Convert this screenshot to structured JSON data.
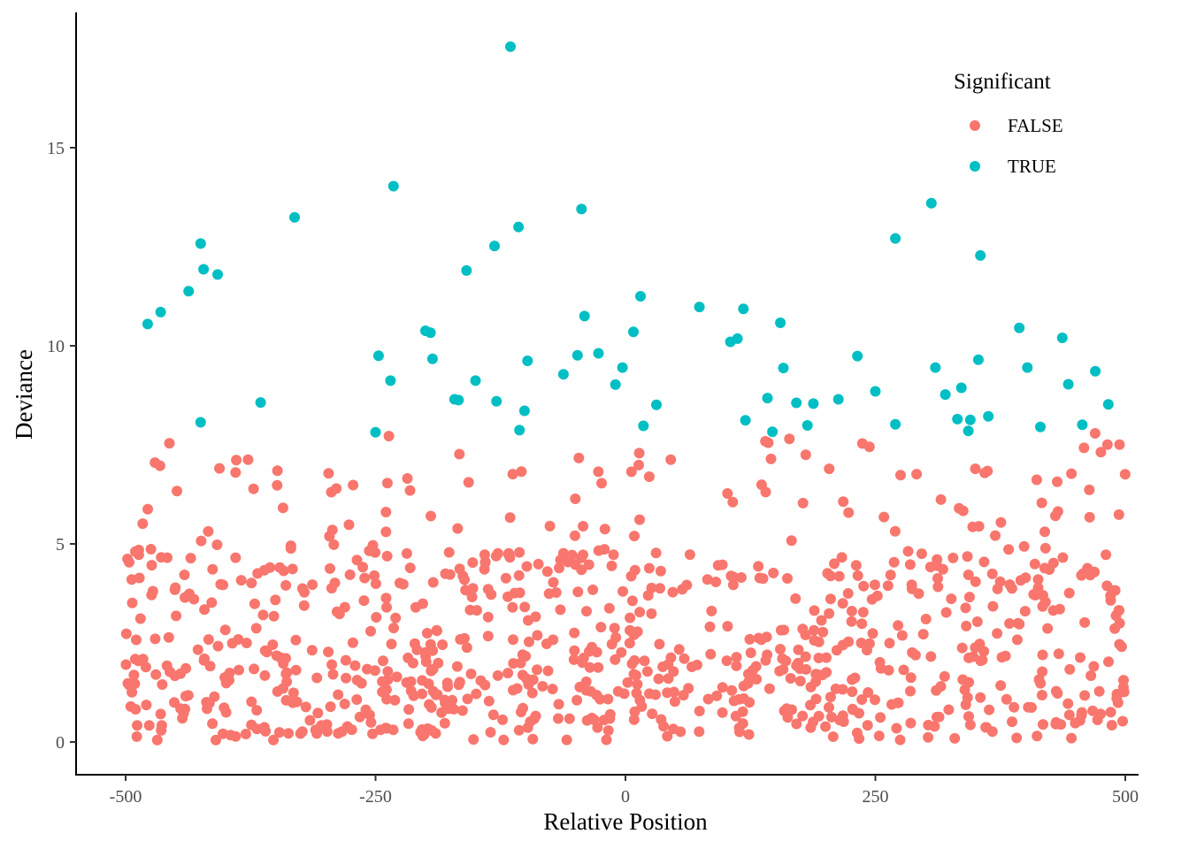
{
  "colors": {
    "FALSE": "#F8766D",
    "TRUE": "#00BFC4",
    "axis": "#000000",
    "tick_text": "#4d4d4d",
    "background": "#ffffff"
  },
  "chart_data": {
    "type": "scatter",
    "title": "",
    "xlabel": "Relative Position",
    "ylabel": "Deviance",
    "xlim": [
      -515,
      515
    ],
    "ylim": [
      -0.8,
      18.3
    ],
    "x_ticks": [
      -500,
      -250,
      0,
      250,
      500
    ],
    "x_tick_labels": [
      "-500",
      "-250",
      "0",
      "250",
      "500"
    ],
    "y_ticks": [
      0,
      5,
      10,
      15
    ],
    "y_tick_labels": [
      "0",
      "5",
      "10",
      "15"
    ],
    "grid": false,
    "legend": {
      "title": "Significant",
      "placement": "top-right",
      "entries": [
        "FALSE",
        "TRUE"
      ]
    },
    "series": [
      {
        "name": "TRUE",
        "x": [
          -478,
          -465,
          -437,
          -425,
          -422,
          -408,
          -425,
          -365,
          -331,
          -250,
          -232,
          -235,
          -247,
          -200,
          -195,
          -193,
          -171,
          -167,
          -159,
          -150,
          -131,
          -129,
          -115,
          -107,
          -101,
          -98,
          -106,
          -62,
          -48,
          -44,
          -41,
          -27,
          -10,
          -3,
          8,
          15,
          18,
          31,
          74,
          105,
          112,
          118,
          120,
          142,
          147,
          155,
          158,
          171,
          182,
          188,
          213,
          232,
          250,
          270,
          270,
          306,
          310,
          320,
          332,
          336,
          343,
          345,
          353,
          355,
          363,
          394,
          402,
          415,
          437,
          443,
          457,
          470,
          483
        ],
        "y": [
          10.55,
          10.85,
          11.38,
          12.58,
          11.93,
          11.8,
          8.07,
          8.57,
          13.24,
          7.82,
          14.03,
          9.12,
          9.75,
          10.38,
          10.33,
          9.67,
          8.65,
          8.63,
          11.9,
          9.12,
          12.52,
          8.6,
          17.55,
          13.0,
          8.36,
          9.62,
          7.87,
          9.28,
          9.76,
          13.45,
          10.75,
          9.81,
          9.02,
          9.45,
          10.35,
          11.25,
          7.98,
          8.51,
          10.98,
          10.1,
          10.18,
          10.93,
          8.12,
          8.68,
          7.83,
          10.58,
          9.44,
          8.56,
          7.99,
          8.54,
          8.65,
          9.74,
          8.85,
          8.02,
          12.71,
          13.6,
          9.45,
          8.77,
          8.15,
          8.94,
          7.85,
          8.13,
          9.65,
          12.28,
          8.22,
          10.45,
          9.45,
          7.95,
          10.2,
          9.03,
          8.01,
          9.36,
          8.52
        ]
      },
      {
        "name": "FALSE",
        "x_range": [
          -500,
          500
        ],
        "y_range": [
          0.0,
          7.8
        ],
        "n_points": 900,
        "generation_seed": 7,
        "y_distribution": "dense below 2.5, sparse 2.5–5, few 5–7.8"
      }
    ]
  }
}
